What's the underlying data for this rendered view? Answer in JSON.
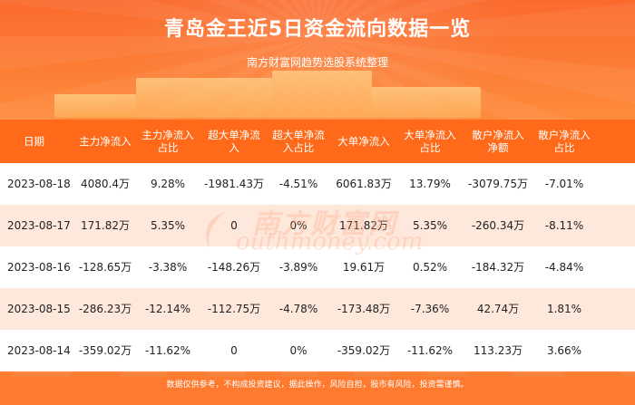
{
  "header": {
    "title": "青岛金王近5日资金流向数据一览",
    "subtitle": "南方财富网趋势选股系统整理"
  },
  "table": {
    "columns": [
      "日期",
      "主力净流入",
      "主力净流入\n占比",
      "超大单净流\n入",
      "超大单净流\n入占比",
      "大单净流入",
      "大单净流入\n占比",
      "散户净流入\n净额",
      "散户净流入\n占比"
    ],
    "rows": [
      [
        "2023-08-18",
        "4080.4万",
        "9.28%",
        "-1981.43万",
        "-4.51%",
        "6061.83万",
        "13.79%",
        "-3079.75万",
        "-7.01%"
      ],
      [
        "2023-08-17",
        "171.82万",
        "5.35%",
        "0",
        "0%",
        "171.82万",
        "5.35%",
        "-260.34万",
        "-8.11%"
      ],
      [
        "2023-08-16",
        "-128.65万",
        "-3.38%",
        "-148.26万",
        "-3.89%",
        "19.61万",
        "0.52%",
        "-184.32万",
        "-4.84%"
      ],
      [
        "2023-08-15",
        "-286.23万",
        "-12.14%",
        "-112.75万",
        "-4.78%",
        "-173.48万",
        "-7.36%",
        "42.74万",
        "1.81%"
      ],
      [
        "2023-08-14",
        "-359.02万",
        "-11.62%",
        "0",
        "0%",
        "-359.02万",
        "-11.62%",
        "113.23万",
        "3.66%"
      ]
    ]
  },
  "watermark": {
    "text_cn": "南方财富网",
    "text_en": "outhmoney.com"
  },
  "footer": {
    "disclaimer": "数据仅供参考，不构成投资建议，据此操作，风险自担，股市有风险，投资需谨慎。"
  },
  "colors": {
    "accent": "#ff6a1a",
    "row_alt": "#fde8db"
  }
}
